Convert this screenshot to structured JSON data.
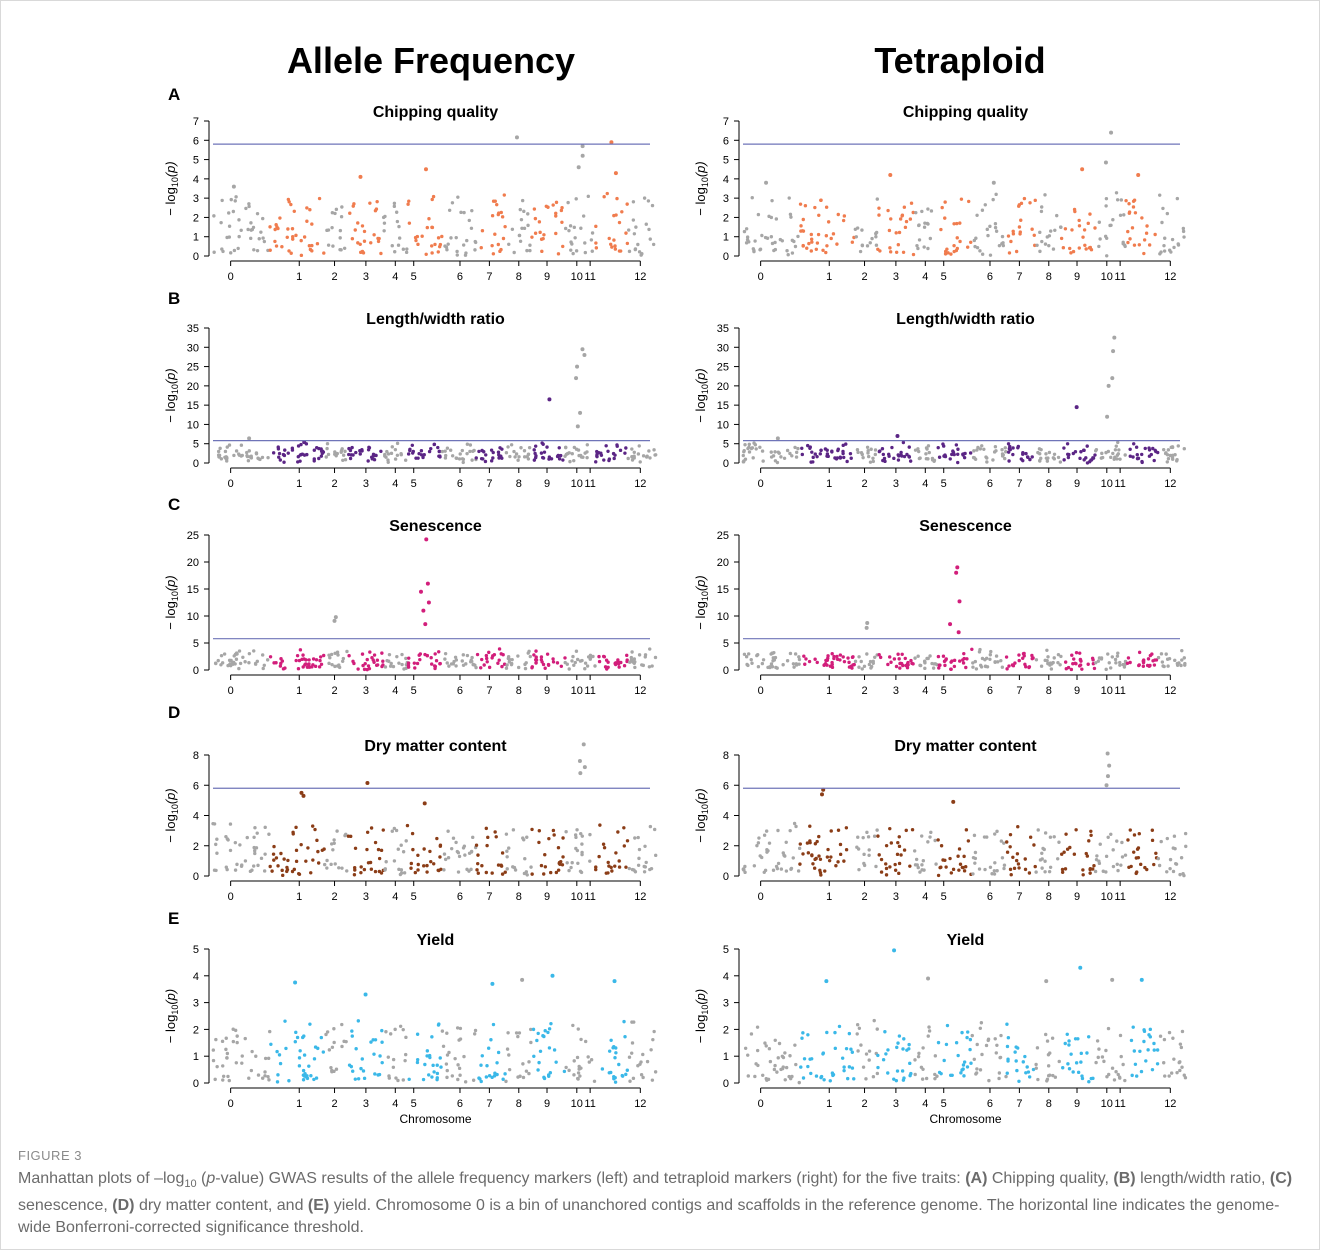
{
  "figure": {
    "column_titles": [
      "Allele Frequency",
      "Tetraploid"
    ],
    "chromosome_labels": [
      "0",
      "1",
      "2",
      "3",
      "4",
      "5",
      "6",
      "7",
      "8",
      "9",
      "10",
      "11",
      "12"
    ],
    "xlabel": "Chromosome",
    "ylabel": "−log10(p)",
    "threshold": 5.8,
    "grey_color": "#a6a6a6",
    "threshold_color": "#6f74b8"
  },
  "caption": {
    "label": "FIGURE 3",
    "p1": "Manhattan plots of –log",
    "sub": "10",
    "p2": " (",
    "pital": "p",
    "p3": "-value) GWAS results of the allele frequency markers (left) and tetraploid markers (right) for the five traits: ",
    "a": "(A)",
    "t_a": " Chipping quality, ",
    "b": "(B)",
    "t_b": " length/width ratio, ",
    "c": "(C)",
    "t_c": " senescence, ",
    "d": "(D)",
    "t_d": " dry matter content, and ",
    "e": "(E)",
    "t_e": " yield. Chromosome 0 is a bin of unanchored contigs and scaffolds in the reference genome. The horizontal line indicates the genome-wide Bonferroni-corrected significance threshold."
  },
  "chart_data": [
    {
      "type": "scatter",
      "panel": "A",
      "column": "Allele Frequency",
      "title": "Chipping quality",
      "color": "#f07c4e",
      "ylim": [
        0,
        7
      ],
      "yticks": [
        0,
        1,
        2,
        3,
        4,
        5,
        6,
        7
      ],
      "threshold": 5.8,
      "points": [
        {
          "chr": "8",
          "y": 6.15
        },
        {
          "chr": "11",
          "y": 5.9
        },
        {
          "chr": "10",
          "y": 5.7
        },
        {
          "chr": "10",
          "y": 5.2
        },
        {
          "chr": "10",
          "y": 4.6
        },
        {
          "chr": "5",
          "y": 4.5
        },
        {
          "chr": "11",
          "y": 4.3
        },
        {
          "chr": "3",
          "y": 4.1
        },
        {
          "chr": "0",
          "y": 3.6
        }
      ]
    },
    {
      "type": "scatter",
      "panel": "A",
      "column": "Tetraploid",
      "title": "Chipping quality",
      "color": "#f07c4e",
      "ylim": [
        0,
        7
      ],
      "yticks": [
        0,
        1,
        2,
        3,
        4,
        5,
        6,
        7
      ],
      "threshold": 5.8,
      "points": [
        {
          "chr": "10",
          "y": 6.4
        },
        {
          "chr": "10",
          "y": 4.85
        },
        {
          "chr": "9",
          "y": 4.5
        },
        {
          "chr": "11",
          "y": 4.2
        },
        {
          "chr": "3",
          "y": 4.2
        },
        {
          "chr": "0",
          "y": 3.8
        },
        {
          "chr": "6",
          "y": 3.8
        }
      ]
    },
    {
      "type": "scatter",
      "panel": "B",
      "column": "Allele Frequency",
      "title": "Length/width ratio",
      "color": "#5b2585",
      "ylim": [
        0,
        35
      ],
      "yticks": [
        0,
        5,
        10,
        15,
        20,
        25,
        30,
        35
      ],
      "threshold": 5.8,
      "points": [
        {
          "chr": "10",
          "y": 29.5
        },
        {
          "chr": "10",
          "y": 28
        },
        {
          "chr": "10",
          "y": 25
        },
        {
          "chr": "10",
          "y": 22
        },
        {
          "chr": "9",
          "y": 16.5
        },
        {
          "chr": "10",
          "y": 13
        },
        {
          "chr": "10",
          "y": 9.5
        },
        {
          "chr": "0",
          "y": 6.4
        },
        {
          "chr": "1",
          "y": 5.4
        }
      ]
    },
    {
      "type": "scatter",
      "panel": "B",
      "column": "Tetraploid",
      "title": "Length/width ratio",
      "color": "#5b2585",
      "ylim": [
        0,
        35
      ],
      "yticks": [
        0,
        5,
        10,
        15,
        20,
        25,
        30,
        35
      ],
      "threshold": 5.8,
      "points": [
        {
          "chr": "10",
          "y": 32.5
        },
        {
          "chr": "10",
          "y": 29
        },
        {
          "chr": "10",
          "y": 22
        },
        {
          "chr": "10",
          "y": 20
        },
        {
          "chr": "9",
          "y": 14.5
        },
        {
          "chr": "10",
          "y": 12
        },
        {
          "chr": "3",
          "y": 7
        },
        {
          "chr": "0",
          "y": 6.4
        }
      ]
    },
    {
      "type": "scatter",
      "panel": "C",
      "column": "Allele Frequency",
      "title": "Senescence",
      "color": "#d21e7b",
      "ylim": [
        0,
        25
      ],
      "yticks": [
        0,
        5,
        10,
        15,
        20,
        25
      ],
      "threshold": 5.8,
      "points": [
        {
          "chr": "5",
          "y": 24.2
        },
        {
          "chr": "5",
          "y": 16
        },
        {
          "chr": "5",
          "y": 14.5
        },
        {
          "chr": "5",
          "y": 12.5
        },
        {
          "chr": "5",
          "y": 11
        },
        {
          "chr": "2",
          "y": 9.8
        },
        {
          "chr": "2",
          "y": 9.1
        },
        {
          "chr": "5",
          "y": 8.5
        }
      ]
    },
    {
      "type": "scatter",
      "panel": "C",
      "column": "Tetraploid",
      "title": "Senescence",
      "color": "#d21e7b",
      "ylim": [
        0,
        25
      ],
      "yticks": [
        0,
        5,
        10,
        15,
        20,
        25
      ],
      "threshold": 5.8,
      "points": [
        {
          "chr": "5",
          "y": 19
        },
        {
          "chr": "5",
          "y": 18
        },
        {
          "chr": "5",
          "y": 12.7
        },
        {
          "chr": "2",
          "y": 8.7
        },
        {
          "chr": "2",
          "y": 7.8
        },
        {
          "chr": "5",
          "y": 8.5
        },
        {
          "chr": "5",
          "y": 7
        }
      ]
    },
    {
      "type": "scatter",
      "panel": "D",
      "column": "Allele Frequency",
      "title": "Dry matter content",
      "color": "#8b3d17",
      "ylim": [
        0,
        8
      ],
      "yticks": [
        0,
        2,
        4,
        6,
        8
      ],
      "threshold": 5.8,
      "points": [
        {
          "chr": "10",
          "y": 8.7
        },
        {
          "chr": "10",
          "y": 7.6
        },
        {
          "chr": "10",
          "y": 7.2
        },
        {
          "chr": "10",
          "y": 6.8
        },
        {
          "chr": "3",
          "y": 6.15
        },
        {
          "chr": "1",
          "y": 5.5
        },
        {
          "chr": "1",
          "y": 5.3
        },
        {
          "chr": "5",
          "y": 4.8
        }
      ]
    },
    {
      "type": "scatter",
      "panel": "D",
      "column": "Tetraploid",
      "title": "Dry matter content",
      "color": "#8b3d17",
      "ylim": [
        0,
        8
      ],
      "yticks": [
        0,
        2,
        4,
        6,
        8
      ],
      "threshold": 5.8,
      "points": [
        {
          "chr": "10",
          "y": 8.1
        },
        {
          "chr": "10",
          "y": 7.3
        },
        {
          "chr": "10",
          "y": 6.6
        },
        {
          "chr": "10",
          "y": 6
        },
        {
          "chr": "1",
          "y": 5.7
        },
        {
          "chr": "1",
          "y": 5.4
        },
        {
          "chr": "5",
          "y": 4.9
        }
      ]
    },
    {
      "type": "scatter",
      "panel": "E",
      "column": "Allele Frequency",
      "title": "Yield",
      "color": "#3ab8e8",
      "ylim": [
        0,
        5
      ],
      "yticks": [
        0,
        1,
        2,
        3,
        4,
        5
      ],
      "threshold": null,
      "points": [
        {
          "chr": "9",
          "y": 4.0
        },
        {
          "chr": "8",
          "y": 3.85
        },
        {
          "chr": "11",
          "y": 3.8
        },
        {
          "chr": "1",
          "y": 3.75
        },
        {
          "chr": "7",
          "y": 3.7
        },
        {
          "chr": "3",
          "y": 3.3
        }
      ]
    },
    {
      "type": "scatter",
      "panel": "E",
      "column": "Tetraploid",
      "title": "Yield",
      "color": "#3ab8e8",
      "ylim": [
        0,
        5
      ],
      "yticks": [
        0,
        1,
        2,
        3,
        4,
        5
      ],
      "threshold": null,
      "points": [
        {
          "chr": "3",
          "y": 4.95
        },
        {
          "chr": "9",
          "y": 4.3
        },
        {
          "chr": "4",
          "y": 3.9
        },
        {
          "chr": "1",
          "y": 3.8
        },
        {
          "chr": "11",
          "y": 3.85
        },
        {
          "chr": "10",
          "y": 3.85
        },
        {
          "chr": "8",
          "y": 3.8
        }
      ]
    }
  ]
}
